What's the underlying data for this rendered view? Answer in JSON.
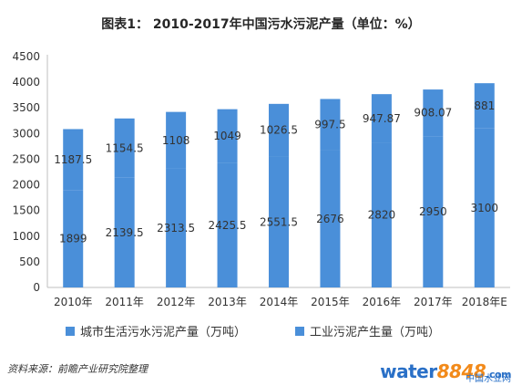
{
  "title": "图表1：  2010-2017年中国污水污泥产量（单位：%）",
  "source": "资料来源：前瞻产业研究院整理",
  "watermark": {
    "main_prefix": "water",
    "main_suffix": "8848",
    "main_tail": ".com",
    "sub": "中国水业网"
  },
  "colors": {
    "bar": "#4a8fd9",
    "axis": "#bfbfbf",
    "text": "#333333"
  },
  "chart_data": {
    "type": "bar",
    "title": "图表1：  2010-2017年中国污水污泥产量（单位：%）",
    "categories": [
      "2010年",
      "2011年",
      "2012年",
      "2013年",
      "2014年",
      "2015年",
      "2016年",
      "2017年",
      "2018年E"
    ],
    "series": [
      {
        "name": "城市生活污水污泥产量（万吨）",
        "values": [
          1899,
          2139.5,
          2313.5,
          2425.5,
          2551.5,
          2676,
          2820,
          2950,
          3100
        ],
        "labels": [
          "1899",
          "2139.5",
          "2313.5",
          "2425.5",
          "2551.5",
          "2676",
          "2820",
          "2950",
          "3100"
        ]
      },
      {
        "name": "工业污泥产生量（万吨）",
        "values": [
          1187.5,
          1154.5,
          1108,
          1049,
          1026.5,
          997.5,
          947.87,
          908.07,
          881
        ],
        "labels": [
          "1187.5",
          "1154.5",
          "1108",
          "1049",
          "1026.5",
          "997.5",
          "947.87",
          "908.07",
          "881"
        ]
      }
    ],
    "stacked": true,
    "ylim": [
      0,
      4500
    ],
    "yticks": [
      0,
      500,
      1000,
      1500,
      2000,
      2500,
      3000,
      3500,
      4000,
      4500
    ],
    "grid": false,
    "legend_position": "bottom"
  }
}
